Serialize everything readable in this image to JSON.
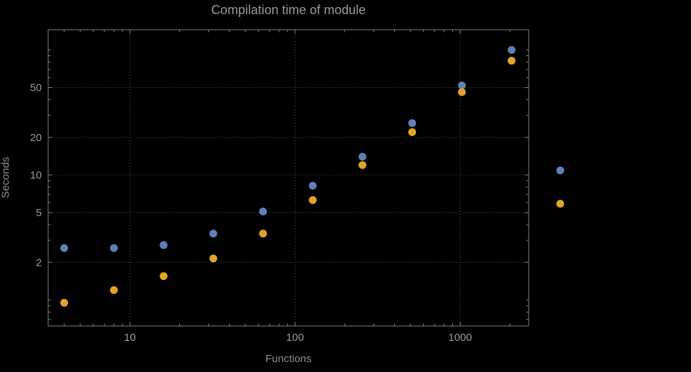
{
  "chart_data": {
    "type": "scatter",
    "title": "Compilation time of module",
    "xlabel": "Functions",
    "ylabel": "Seconds",
    "x_scale": "log",
    "y_scale": "log",
    "x_range": [
      3.2,
      2600
    ],
    "y_range": [
      0.62,
      145
    ],
    "grid": "dotted",
    "legend_position": "right-outside",
    "x_ticks": [
      {
        "value": 10,
        "label": "10"
      },
      {
        "value": 100,
        "label": "100"
      },
      {
        "value": 1000,
        "label": "1000"
      }
    ],
    "y_ticks": [
      {
        "value": 2,
        "label": "2"
      },
      {
        "value": 5,
        "label": "5"
      },
      {
        "value": 10,
        "label": "10"
      },
      {
        "value": 20,
        "label": "20"
      },
      {
        "value": 50,
        "label": "50"
      }
    ],
    "x": [
      4,
      8,
      16,
      32,
      64,
      128,
      256,
      512,
      1024,
      2048
    ],
    "series": [
      {
        "name": "series-blue",
        "color": "#5e81b5",
        "values": [
          2.6,
          2.6,
          2.75,
          3.4,
          5.1,
          8.2,
          14,
          26,
          52,
          100
        ]
      },
      {
        "name": "series-orange",
        "color": "#e0a42a",
        "values": [
          0.95,
          1.2,
          1.55,
          2.15,
          3.4,
          6.3,
          12,
          22,
          46,
          82
        ]
      }
    ],
    "legend": {
      "markers": [
        {
          "name": "legend-marker-blue",
          "color": "#5e81b5",
          "label": ""
        },
        {
          "name": "legend-marker-orange",
          "color": "#e0a42a",
          "label": ""
        }
      ]
    },
    "style": {
      "background": "#000000",
      "text_color": "#9b9b9b",
      "frame_color": "#7f7f7f",
      "grid_color": "#5c5c5c",
      "point_radius": 5.5
    }
  }
}
